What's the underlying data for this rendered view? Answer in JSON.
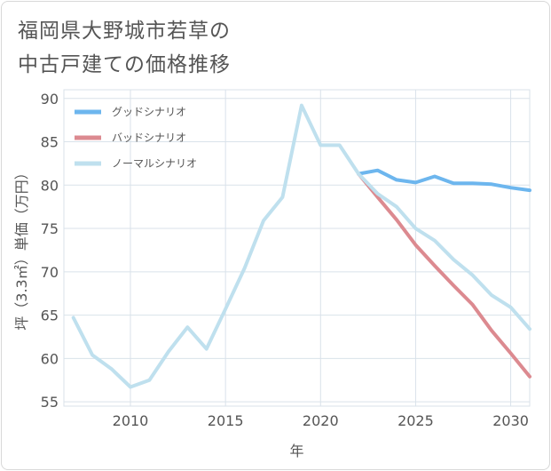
{
  "title_lines": [
    "福岡県大野城市若草の",
    "中古戸建ての価格推移"
  ],
  "chart_data": {
    "type": "line",
    "xlabel": "年",
    "ylabel": "坪（3.3㎡）単価（万円）",
    "xlim": [
      2006.5,
      2031
    ],
    "ylim": [
      54.5,
      91
    ],
    "xticks": [
      2010,
      2015,
      2020,
      2025,
      2030
    ],
    "yticks": [
      55,
      60,
      65,
      70,
      75,
      80,
      85,
      90
    ],
    "grid": true,
    "legend_position": "top-left",
    "series": [
      {
        "name": "グッドシナリオ",
        "color": "#6db6ee",
        "x": [
          2022,
          2023,
          2024,
          2025,
          2026,
          2027,
          2028,
          2029,
          2030,
          2031
        ],
        "y": [
          81.3,
          81.7,
          80.6,
          80.3,
          81.0,
          80.2,
          80.2,
          80.1,
          79.7,
          79.4
        ]
      },
      {
        "name": "バッドシナリオ",
        "color": "#dc8a90",
        "x": [
          2022,
          2023,
          2024,
          2025,
          2026,
          2027,
          2028,
          2029,
          2030,
          2031
        ],
        "y": [
          81.3,
          78.6,
          76.0,
          73.1,
          70.7,
          68.4,
          66.2,
          63.2,
          60.6,
          57.9
        ]
      },
      {
        "name": "ノーマルシナリオ",
        "color": "#bfe0ee",
        "x": [
          2007,
          2008,
          2009,
          2010,
          2011,
          2012,
          2013,
          2014,
          2015,
          2016,
          2017,
          2018,
          2019,
          2020,
          2021,
          2022,
          2023,
          2024,
          2025,
          2026,
          2027,
          2028,
          2029,
          2030,
          2031
        ],
        "y": [
          64.7,
          60.4,
          58.8,
          56.7,
          57.5,
          60.8,
          63.6,
          61.1,
          65.7,
          70.4,
          75.9,
          78.6,
          89.2,
          84.6,
          84.6,
          81.3,
          79.0,
          77.5,
          75.0,
          73.6,
          71.4,
          69.6,
          67.3,
          65.9,
          63.4
        ]
      }
    ]
  }
}
